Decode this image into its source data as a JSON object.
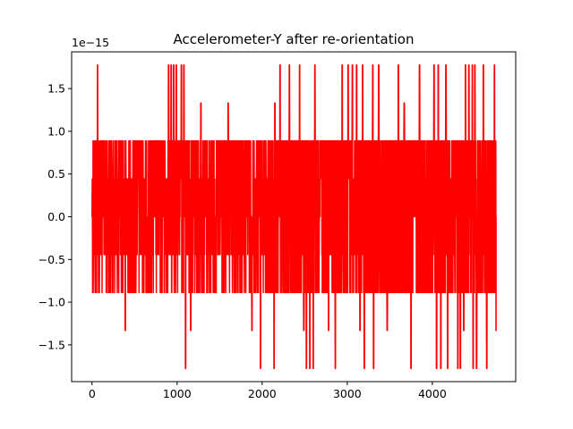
{
  "chart_data": {
    "type": "line",
    "title": "Accelerometer-Y after re-orientation",
    "xlabel": "",
    "ylabel": "",
    "y_offset_label": "1e−15",
    "xlim": [
      -240,
      4980
    ],
    "ylim": [
      -1.93,
      1.93
    ],
    "x_ticks": [
      0,
      1000,
      2000,
      3000,
      4000
    ],
    "x_tick_labels": [
      "0",
      "1000",
      "2000",
      "3000",
      "4000"
    ],
    "y_ticks": [
      -1.5,
      -1.0,
      -0.5,
      0.0,
      0.5,
      1.0,
      1.5
    ],
    "y_tick_labels": [
      "−1.5",
      "−1.0",
      "−0.5",
      "0.0",
      "0.5",
      "1.0",
      "1.5"
    ],
    "grid": false,
    "legend": "none",
    "series": [
      {
        "color": "#ff0000",
        "n_points": 4751,
        "x_start": 0,
        "x_end": 4750,
        "levels": [
          -1.776,
          -1.332,
          -0.888,
          -0.444,
          0.0,
          0.444,
          0.888,
          1.332,
          1.776
        ],
        "dense_start_x": 2050,
        "spike_up_x": [
          65,
          900,
          930,
          960,
          990,
          1050,
          1080,
          2210,
          2320,
          2440,
          2620,
          2940,
          3010,
          3060,
          3110,
          3180,
          3300,
          3370,
          3600,
          3850,
          4020,
          4070,
          4160,
          4390,
          4430,
          4470,
          4500,
          4600,
          4730
        ],
        "spike_down_x": [
          1100,
          1980,
          2140,
          2520,
          2560,
          2600,
          2860,
          3200,
          3310,
          3750,
          4050,
          4100,
          4180,
          4300,
          4330,
          4390,
          4480,
          4520,
          4640
        ],
        "mid_up_x": [
          1280,
          1600,
          2150,
          3670
        ],
        "mid_down_x": [
          390,
          1160,
          1880,
          2490,
          2780,
          3150,
          3470,
          4370,
          4750
        ]
      }
    ]
  }
}
